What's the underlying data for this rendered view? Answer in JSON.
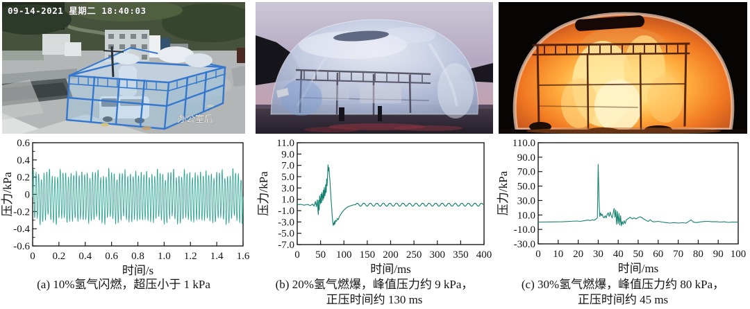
{
  "panels": [
    {
      "id": "a",
      "photo_alt": "CCTV photo of blue scaffold test cage covered with plastic film, white van inside, concrete test site",
      "overlay_timestamp": "09-14-2021 星期二 18:40:03",
      "overlay_location": "办公室后",
      "caption_line1": "(a) 10%氢气闪燃，超压小于 1 kPa",
      "caption_line2": ""
    },
    {
      "id": "b",
      "photo_alt": "Photo at dusk of large translucent inflated dome over steel frame",
      "caption_line1": "(b) 20%氢气燃爆，峰值压力约 9 kPa，",
      "caption_line2": "正压时间约 130 ms"
    },
    {
      "id": "c",
      "photo_alt": "Night photo of dome filled with fireball during hydrogen explosion",
      "caption_line1": "(c) 30%氢气燃爆，峰值压力约 80 kPa，",
      "caption_line2": "正压时间约 45 ms"
    }
  ],
  "chart_data": [
    {
      "type": "line",
      "title": "",
      "xlabel": "时间/s",
      "ylabel": "压力/kPa",
      "xlim": [
        0,
        1.6
      ],
      "ylim": [
        -0.6,
        0.6
      ],
      "xticks": [
        0,
        0.2,
        0.4,
        0.6,
        0.8,
        1.0,
        1.2,
        1.4,
        1.6
      ],
      "xtick_labels": [
        "0",
        "0.2",
        "0.4",
        "0.6",
        "0.8",
        "1.0",
        "1.2",
        "1.4",
        "1.6"
      ],
      "yticks": [
        -0.6,
        -0.4,
        -0.2,
        0,
        0.2,
        0.4,
        0.6
      ],
      "ytick_labels": [
        "-0.6",
        "-0.4",
        "-0.2",
        "0",
        "0.2",
        "0.4",
        "0.6"
      ],
      "y_minor_step": 0.1,
      "grid": false,
      "box": true,
      "tick_direction": "in",
      "line_color": "#1fa08a",
      "line_width": 0.8,
      "signal": {
        "kind": "dense_oscillation",
        "baseline": -0.03,
        "amp_min": 0.22,
        "amp_max": 0.33,
        "cycles": 78,
        "note": "sustained ±0.3 kPa oscillation over 0–1.6 s, overpressure below 1 kPa"
      }
    },
    {
      "type": "line",
      "title": "",
      "xlabel": "时间/ms",
      "ylabel": "压力/kPa",
      "xlim": [
        0,
        400
      ],
      "ylim": [
        -7,
        11
      ],
      "xticks": [
        0,
        50,
        100,
        150,
        200,
        250,
        300,
        350,
        400
      ],
      "xtick_labels": [
        "0",
        "50",
        "100",
        "150",
        "200",
        "250",
        "300",
        "350",
        "400"
      ],
      "yticks": [
        -7,
        -5,
        -3,
        -1,
        1,
        3,
        5,
        7,
        9,
        11
      ],
      "ytick_labels": [
        "-7.0",
        "-5.0",
        "-3.0",
        "-1.0",
        "1.0",
        "3.0",
        "5.0",
        "7.0",
        "9.0",
        "11.0"
      ],
      "grid": false,
      "box": true,
      "tick_direction": "in",
      "line_color": "#15826f",
      "line_width": 1.15,
      "points": [
        [
          0,
          0.05
        ],
        [
          8,
          0.1
        ],
        [
          15,
          -0.05
        ],
        [
          22,
          0.1
        ],
        [
          28,
          -0.1
        ],
        [
          33,
          0.15
        ],
        [
          36,
          -0.2
        ],
        [
          39,
          0.6
        ],
        [
          41,
          -0.3
        ],
        [
          43,
          0.9
        ],
        [
          45,
          -1.7
        ],
        [
          46,
          0.8
        ],
        [
          47,
          -0.9
        ],
        [
          48,
          1.6
        ],
        [
          50,
          0.2
        ],
        [
          51,
          1.9
        ],
        [
          52,
          0.4
        ],
        [
          53,
          2.2
        ],
        [
          55,
          0.8
        ],
        [
          56,
          2.6
        ],
        [
          57,
          1.2
        ],
        [
          58,
          3.1
        ],
        [
          59,
          1.6
        ],
        [
          60,
          2.0
        ],
        [
          61,
          3.6
        ],
        [
          62,
          2.2
        ],
        [
          63,
          4.6
        ],
        [
          64,
          3.4
        ],
        [
          65,
          5.2
        ],
        [
          66,
          7.1
        ],
        [
          67,
          6.0
        ],
        [
          68,
          6.6
        ],
        [
          69,
          5.2
        ],
        [
          70,
          4.4
        ],
        [
          71,
          3.0
        ],
        [
          72,
          1.6
        ],
        [
          73,
          0.4
        ],
        [
          74,
          -0.8
        ],
        [
          75,
          -2.0
        ],
        [
          76,
          -2.9
        ],
        [
          77,
          -3.6
        ],
        [
          78,
          -3.2
        ],
        [
          79,
          -3.5
        ],
        [
          80,
          -2.9
        ],
        [
          81,
          -3.3
        ],
        [
          82,
          -2.7
        ],
        [
          84,
          -2.9
        ],
        [
          86,
          -2.4
        ],
        [
          88,
          -2.6
        ],
        [
          90,
          -2.1
        ],
        [
          93,
          -1.7
        ],
        [
          96,
          -1.3
        ],
        [
          100,
          -0.9
        ],
        [
          104,
          -0.6
        ],
        [
          108,
          -0.35
        ],
        [
          112,
          -0.2
        ],
        [
          116,
          -0.1
        ],
        [
          120,
          0.0
        ],
        [
          125,
          0.05
        ]
      ],
      "tail_ripple": {
        "from": 125,
        "to": 400,
        "amplitude": 0.28,
        "period": 14,
        "baseline": 0.05,
        "note": "small residual ripple about 0 kPa from 125 ms to 400 ms"
      }
    },
    {
      "type": "line",
      "title": "",
      "xlabel": "时间/ms",
      "ylabel": "压力/kPa",
      "xlim": [
        0,
        100
      ],
      "ylim": [
        -30,
        110
      ],
      "xticks": [
        0,
        10,
        20,
        30,
        40,
        50,
        60,
        70,
        80,
        90,
        100
      ],
      "xtick_labels": [
        "0",
        "10",
        "20",
        "30",
        "40",
        "50",
        "60",
        "70",
        "80",
        "90",
        "100"
      ],
      "yticks": [
        -30,
        -10,
        10,
        30,
        50,
        70,
        90,
        110
      ],
      "ytick_labels": [
        "-30.0",
        "-10.0",
        "10.0",
        "30.0",
        "50.0",
        "70.0",
        "90.0",
        "110.0"
      ],
      "grid": false,
      "box": true,
      "tick_direction": "in",
      "line_color": "#15826f",
      "line_width": 1.1,
      "points": [
        [
          0,
          0.2
        ],
        [
          6,
          0.4
        ],
        [
          12,
          0.6
        ],
        [
          16,
          1.2
        ],
        [
          19,
          1.6
        ],
        [
          21,
          1.2
        ],
        [
          23,
          2.0
        ],
        [
          25,
          3.0
        ],
        [
          26,
          2.2
        ],
        [
          27,
          3.4
        ],
        [
          28,
          2.6
        ],
        [
          29,
          4.5
        ],
        [
          29.6,
          6
        ],
        [
          30,
          80
        ],
        [
          30.4,
          30
        ],
        [
          30.8,
          8
        ],
        [
          31.2,
          13
        ],
        [
          31.6,
          9
        ],
        [
          32,
          11
        ],
        [
          32.5,
          7
        ],
        [
          33,
          6
        ],
        [
          33.5,
          9
        ],
        [
          34,
          6
        ],
        [
          34.5,
          11
        ],
        [
          35,
          13
        ],
        [
          35.5,
          8
        ],
        [
          36,
          14
        ],
        [
          36.5,
          9
        ],
        [
          37,
          6
        ],
        [
          37.5,
          13
        ],
        [
          38,
          19
        ],
        [
          38.4,
          7
        ],
        [
          38.8,
          17
        ],
        [
          39.2,
          -3
        ],
        [
          39.6,
          15
        ],
        [
          40,
          -2
        ],
        [
          40.4,
          12
        ],
        [
          40.8,
          -4
        ],
        [
          41.2,
          9
        ],
        [
          41.6,
          -5
        ],
        [
          42,
          1
        ],
        [
          42.5,
          -3
        ],
        [
          43,
          2
        ],
        [
          43.5,
          -2
        ],
        [
          44,
          3
        ],
        [
          45,
          5
        ],
        [
          46,
          7
        ],
        [
          47,
          4.5
        ],
        [
          48,
          6
        ],
        [
          49,
          4.5
        ],
        [
          50,
          6.5
        ],
        [
          51,
          7.5
        ],
        [
          52,
          6
        ],
        [
          53,
          4
        ],
        [
          54,
          2.5
        ],
        [
          55,
          1
        ],
        [
          56,
          3.5
        ],
        [
          57,
          1
        ],
        [
          58,
          0.5
        ],
        [
          60,
          1.2
        ],
        [
          62,
          0.2
        ],
        [
          64,
          -0.6
        ],
        [
          66,
          -1.2
        ],
        [
          68,
          -0.6
        ],
        [
          70,
          -1.2
        ],
        [
          72,
          -0.8
        ],
        [
          74,
          -1.2
        ],
        [
          75.5,
          1.5
        ],
        [
          76.5,
          3.2
        ],
        [
          77.5,
          0.3
        ],
        [
          79,
          -0.6
        ],
        [
          81,
          0.4
        ],
        [
          83,
          1
        ],
        [
          85,
          1.2
        ],
        [
          87,
          0.6
        ],
        [
          89,
          0.8
        ],
        [
          91,
          0.2
        ],
        [
          93,
          0.6
        ],
        [
          95,
          -0.3
        ],
        [
          97,
          0.3
        ],
        [
          99,
          0.1
        ],
        [
          100,
          0.1
        ]
      ]
    }
  ]
}
